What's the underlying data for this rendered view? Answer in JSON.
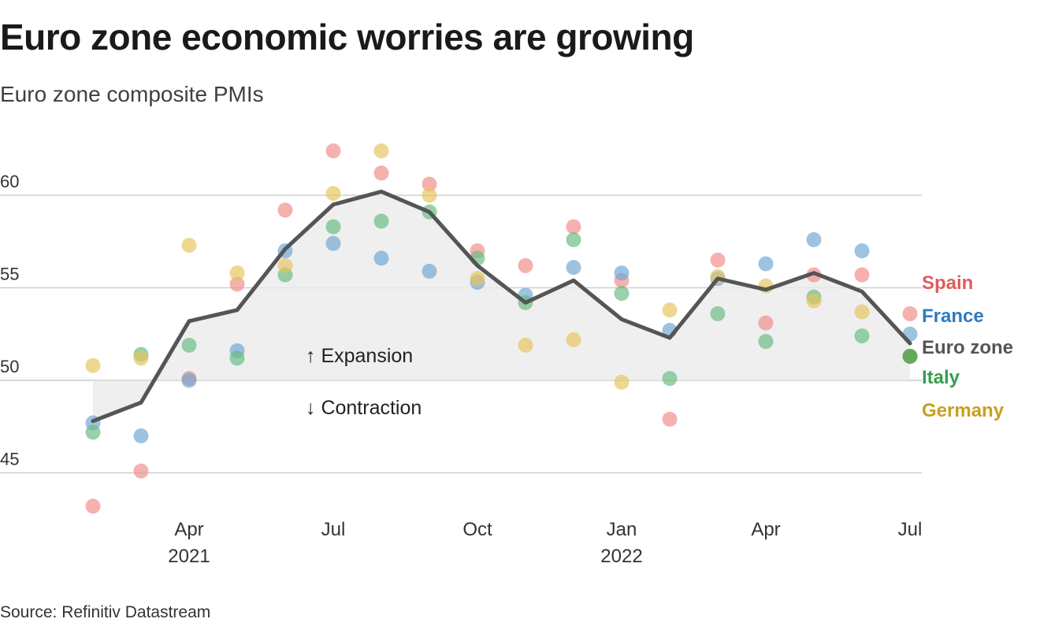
{
  "title": "Euro zone economic worries are growing",
  "subtitle": "Euro zone composite PMIs",
  "source": "Source: Refinitiv Datastream",
  "chart_data": {
    "type": "line+scatter",
    "title": "Euro zone economic worries are growing",
    "subtitle": "Euro zone composite PMIs",
    "ylim": [
      42.5,
      63.5
    ],
    "yticks": [
      45,
      50,
      55,
      60
    ],
    "months": [
      "Feb 2021",
      "Mar 2021",
      "Apr 2021",
      "May 2021",
      "Jun 2021",
      "Jul 2021",
      "Aug 2021",
      "Sep 2021",
      "Oct 2021",
      "Nov 2021",
      "Dec 2021",
      "Jan 2022",
      "Feb 2022",
      "Mar 2022",
      "Apr 2022",
      "May 2022",
      "Jun 2022",
      "Jul 2022"
    ],
    "xticks": [
      {
        "index": 2,
        "label": "Apr",
        "year": "2021"
      },
      {
        "index": 5,
        "label": "Jul",
        "year": ""
      },
      {
        "index": 8,
        "label": "Oct",
        "year": ""
      },
      {
        "index": 11,
        "label": "Jan",
        "year": "2022"
      },
      {
        "index": 14,
        "label": "Apr",
        "year": ""
      },
      {
        "index": 17,
        "label": "Jul",
        "year": ""
      }
    ],
    "reference_line": 50,
    "annotations": {
      "expansion": "↑ Expansion",
      "contraction": "↓ Contraction"
    },
    "series": [
      {
        "name": "Spain",
        "color": "#f08c88",
        "style": "dots",
        "values": [
          43.2,
          45.1,
          50.1,
          55.2,
          59.2,
          62.4,
          61.2,
          60.6,
          57.0,
          56.2,
          58.3,
          55.4,
          47.9,
          56.5,
          53.1,
          55.7,
          55.7,
          53.6
        ]
      },
      {
        "name": "France",
        "color": "#6ea6d4",
        "style": "dots",
        "values": [
          47.7,
          47.0,
          50.0,
          51.6,
          57.0,
          57.4,
          56.6,
          55.9,
          55.3,
          54.6,
          56.1,
          55.8,
          52.7,
          55.5,
          56.3,
          57.6,
          57.0,
          52.5
        ]
      },
      {
        "name": "Euro zone",
        "color": "#555555",
        "style": "line",
        "values": [
          47.8,
          48.8,
          53.2,
          53.8,
          57.1,
          59.5,
          60.2,
          59.1,
          56.2,
          54.2,
          55.4,
          53.3,
          52.3,
          55.5,
          54.9,
          55.8,
          54.8,
          52.0
        ]
      },
      {
        "name": "Italy",
        "color": "#67bb82",
        "style": "dots",
        "values": [
          47.2,
          51.4,
          51.9,
          51.2,
          55.7,
          58.3,
          58.6,
          59.1,
          56.6,
          54.2,
          57.6,
          54.7,
          50.1,
          53.6,
          52.1,
          54.5,
          52.4,
          51.3
        ]
      },
      {
        "name": "Germany",
        "color": "#e6c45c",
        "style": "dots",
        "values": [
          50.8,
          51.2,
          57.3,
          55.8,
          56.2,
          60.1,
          62.4,
          60.0,
          55.5,
          51.9,
          52.2,
          49.9,
          53.8,
          55.6,
          55.1,
          54.3,
          53.7,
          51.3
        ]
      }
    ],
    "legend": [
      {
        "label": "Spain",
        "color": "#e05c5c"
      },
      {
        "label": "France",
        "color": "#2e7bbf"
      },
      {
        "label": "Euro zone",
        "color": "#555555"
      },
      {
        "label": "Italy",
        "color": "#3a9c4e"
      },
      {
        "label": "Germany",
        "color": "#c8a020"
      }
    ],
    "legend_position": "right"
  }
}
